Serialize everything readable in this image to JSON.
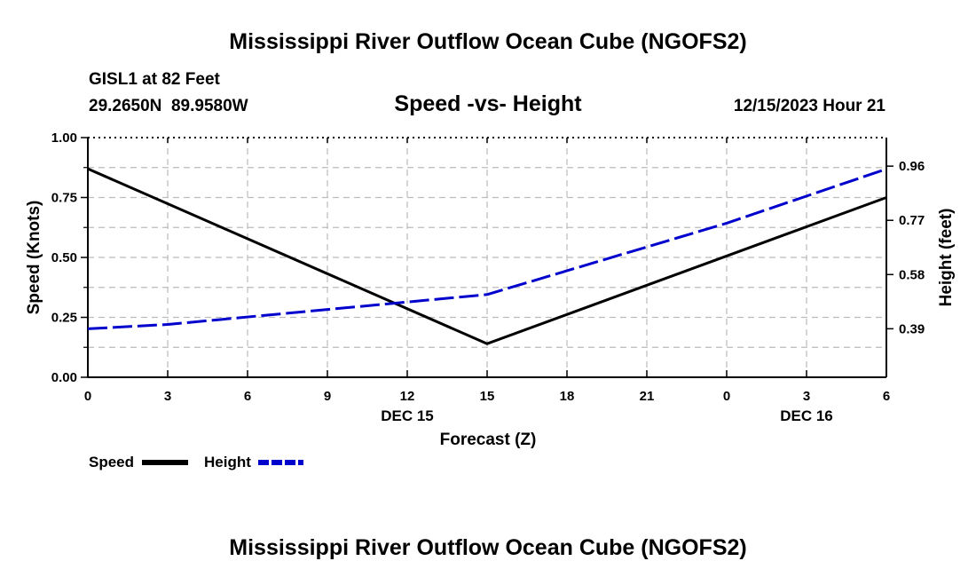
{
  "page": {
    "title": "Mississippi River Outflow Ocean Cube (NGOFS2)",
    "footer_title": "Mississippi River Outflow Ocean Cube (NGOFS2)",
    "station": "GISL1 at 82 Feet",
    "coords": "29.2650N  89.9580W",
    "plot_title": "Speed -vs- Height",
    "datetime": "12/15/2023 Hour 21"
  },
  "chart_data": {
    "type": "line",
    "title": "Speed -vs- Height",
    "xlabel": "Forecast (Z)",
    "ylabel": "Speed (Knots)",
    "y2label": "Height (feet)",
    "x_ticks": [
      "0",
      "3",
      "6",
      "9",
      "12",
      "15",
      "18",
      "21",
      "0",
      "3",
      "6"
    ],
    "date_labels": [
      {
        "text": "DEC 15",
        "at_tick": 4
      },
      {
        "text": "DEC 16",
        "at_tick": 9
      }
    ],
    "xlim": [
      0,
      30
    ],
    "ylim": [
      0,
      1
    ],
    "y_ticks": [
      "1.00",
      "0.75",
      "0.50",
      "0.25",
      "0.00"
    ],
    "y2lim": [
      0.22,
      1.06
    ],
    "y2_ticks": [
      "0.96",
      "0.77",
      "0.58",
      "0.39"
    ],
    "grid": true,
    "series": [
      {
        "name": "Speed",
        "axis": "left",
        "color": "#000000",
        "style": "solid",
        "x": [
          0,
          15,
          30
        ],
        "values": [
          0.87,
          0.14,
          0.75
        ]
      },
      {
        "name": "Height",
        "axis": "right",
        "color": "#0000cc",
        "style": "dashed",
        "x": [
          0,
          3,
          15,
          24,
          30
        ],
        "values": [
          0.39,
          0.405,
          0.51,
          0.76,
          0.95
        ]
      }
    ],
    "legend": {
      "placement": "bottom-left",
      "entries": [
        "Speed",
        "Height"
      ]
    }
  }
}
